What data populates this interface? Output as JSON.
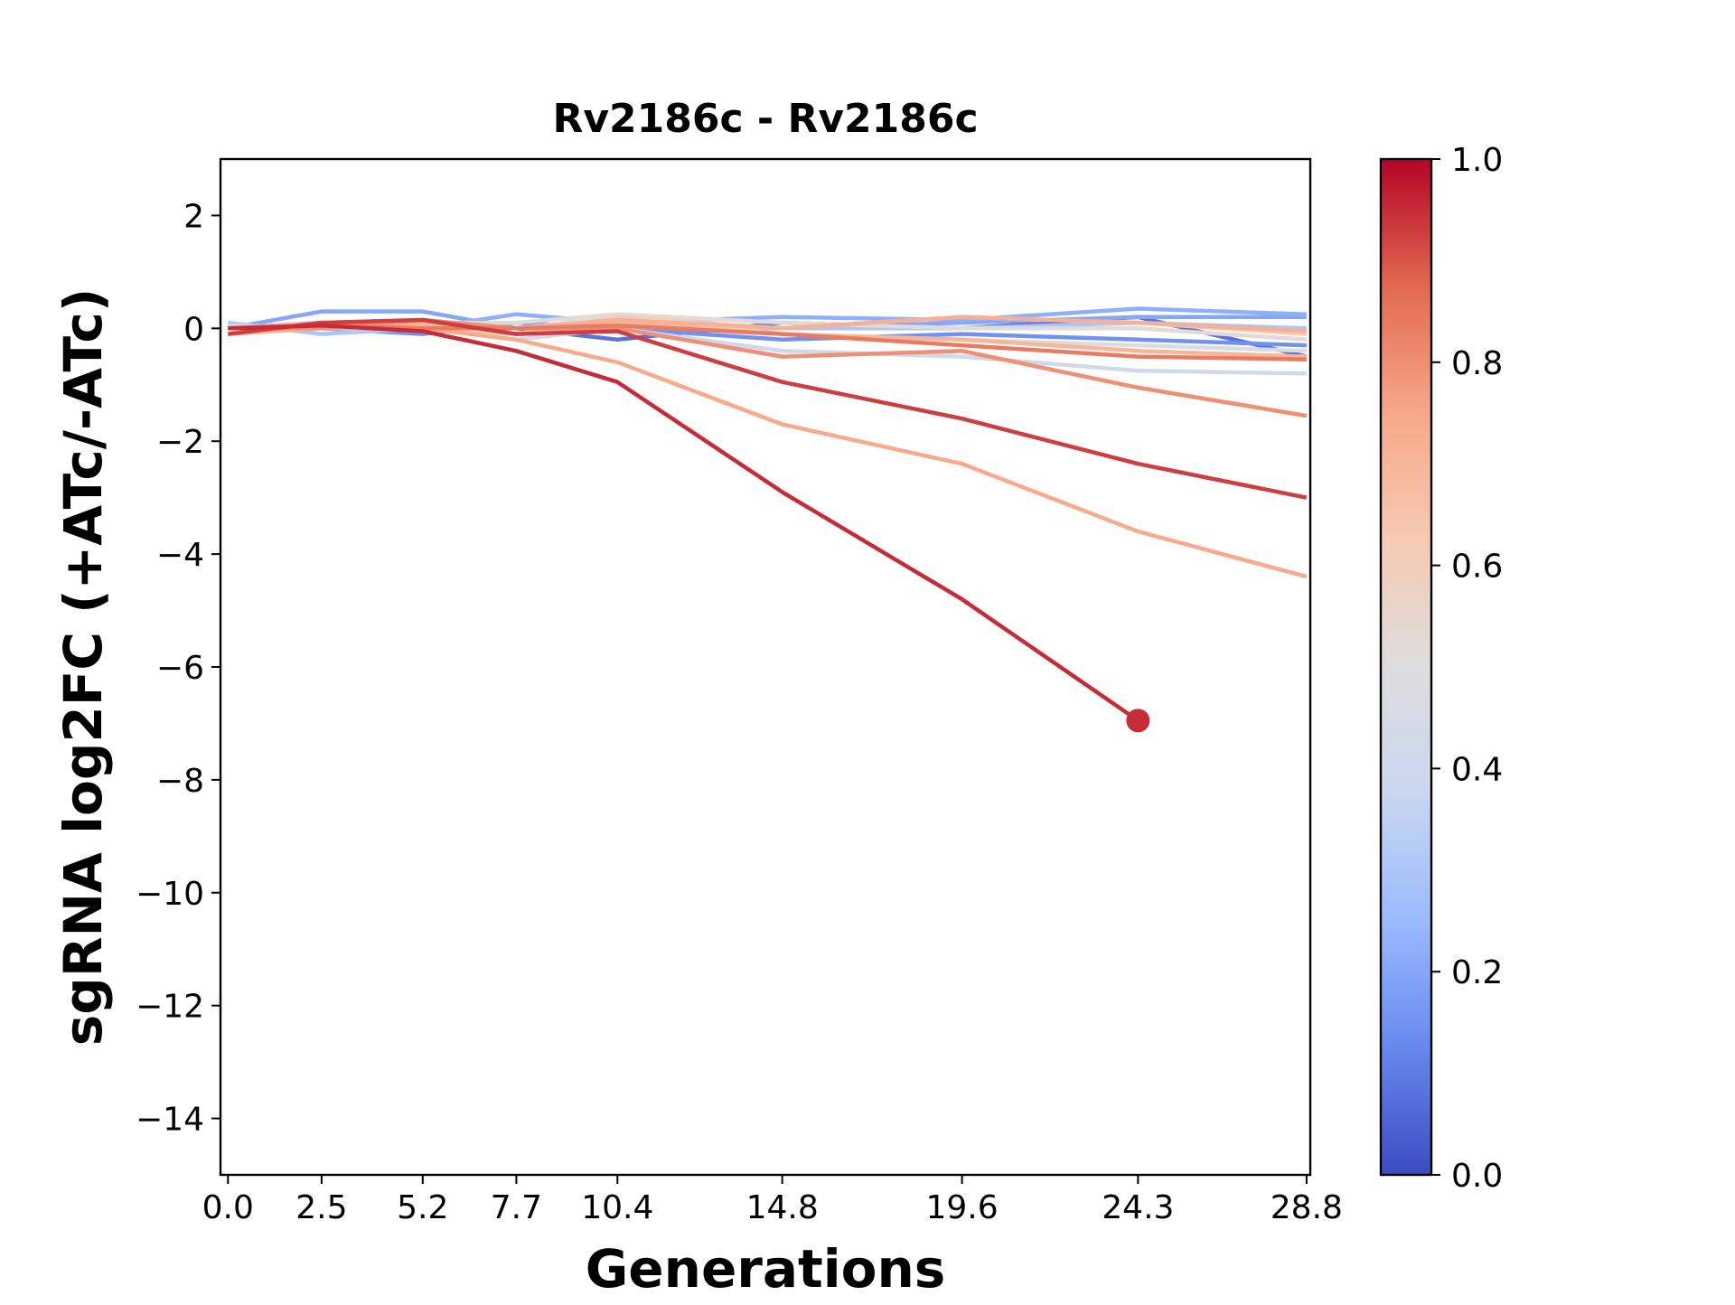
{
  "chart_data": {
    "type": "line",
    "title": "Rv2186c - Rv2186c",
    "xlabel": "Generations",
    "ylabel": "sgRNA log2FC (+ATc/-ATc)",
    "x": [
      0.0,
      2.5,
      5.2,
      7.7,
      10.4,
      14.8,
      19.6,
      24.3,
      28.8
    ],
    "x_tick_labels": [
      "0.0",
      "2.5",
      "5.2",
      "7.7",
      "10.4",
      "14.8",
      "19.6",
      "24.3",
      "28.8"
    ],
    "xlim": [
      -0.2,
      28.9
    ],
    "ylim": [
      -15,
      3
    ],
    "y_ticks": [
      2,
      0,
      -2,
      -4,
      -6,
      -8,
      -10,
      -12,
      -14
    ],
    "y_tick_labels": [
      "2",
      "0",
      "−2",
      "−4",
      "−6",
      "−8",
      "−10",
      "−12",
      "−14"
    ],
    "grid": false,
    "colorbar": {
      "colormap": "coolwarm",
      "range": [
        0.0,
        1.0
      ],
      "ticks": [
        0.0,
        0.2,
        0.4,
        0.6,
        0.8,
        1.0
      ],
      "tick_labels": [
        "0.0",
        "0.2",
        "0.4",
        "0.6",
        "0.8",
        "1.0"
      ],
      "stops": [
        "#3b4cc0",
        "#6788ee",
        "#9abbff",
        "#c9d7f0",
        "#dddddd",
        "#f6cab3",
        "#f7a889",
        "#e26952",
        "#b40426"
      ]
    },
    "series": [
      {
        "color_value": 0.08,
        "values": [
          0.0,
          0.1,
          0.05,
          0.0,
          -0.2,
          0.1,
          0.0,
          0.2,
          -0.5
        ]
      },
      {
        "color_value": 0.15,
        "values": [
          0.05,
          0.0,
          -0.1,
          0.1,
          0.0,
          -0.2,
          -0.1,
          -0.2,
          -0.3
        ]
      },
      {
        "color_value": 0.2,
        "values": [
          0.0,
          0.3,
          0.3,
          0.0,
          0.0,
          0.0,
          0.1,
          0.2,
          0.2
        ]
      },
      {
        "color_value": 0.22,
        "values": [
          0.0,
          0.0,
          0.0,
          0.25,
          0.1,
          0.2,
          0.15,
          0.35,
          0.25
        ]
      },
      {
        "color_value": 0.3,
        "values": [
          0.1,
          -0.1,
          0.0,
          -0.1,
          0.1,
          0.0,
          0.0,
          0.1,
          0.0
        ]
      },
      {
        "color_value": 0.42,
        "values": [
          0.05,
          0.0,
          0.0,
          -0.2,
          0.0,
          -0.4,
          -0.5,
          -0.75,
          -0.8
        ]
      },
      {
        "color_value": 0.48,
        "values": [
          0.0,
          0.05,
          0.0,
          0.0,
          0.2,
          -0.1,
          -0.2,
          -0.3,
          -0.4
        ]
      },
      {
        "color_value": 0.52,
        "values": [
          0.0,
          0.0,
          0.1,
          0.1,
          0.25,
          0.1,
          0.0,
          0.0,
          -0.2
        ]
      },
      {
        "color_value": 0.62,
        "values": [
          0.0,
          0.05,
          0.0,
          -0.1,
          0.2,
          0.0,
          0.2,
          0.1,
          -0.1
        ]
      },
      {
        "color_value": 0.7,
        "values": [
          0.0,
          0.0,
          0.05,
          0.0,
          0.1,
          -0.1,
          -0.2,
          -0.4,
          -0.5
        ]
      },
      {
        "color_value": 0.72,
        "values": [
          -0.1,
          0.0,
          0.1,
          0.0,
          0.15,
          0.0,
          0.2,
          0.1,
          -0.05
        ]
      },
      {
        "color_value": 0.74,
        "values": [
          0.0,
          0.1,
          0.0,
          -0.2,
          -0.6,
          -1.7,
          -2.4,
          -3.6,
          -4.4
        ]
      },
      {
        "color_value": 0.8,
        "values": [
          0.0,
          0.0,
          0.15,
          0.0,
          0.0,
          -0.5,
          -0.4,
          -1.05,
          -1.55
        ]
      },
      {
        "color_value": 0.84,
        "values": [
          0.0,
          0.05,
          0.0,
          0.0,
          0.05,
          -0.1,
          -0.3,
          -0.5,
          -0.55
        ]
      },
      {
        "color_value": 0.93,
        "values": [
          -0.1,
          0.1,
          0.15,
          -0.1,
          -0.05,
          -0.95,
          -1.6,
          -2.4,
          -3.0
        ]
      },
      {
        "color_value": 0.95,
        "values": [
          0.0,
          0.05,
          -0.05,
          -0.4,
          -0.95,
          -2.9,
          -4.8,
          -6.95,
          null
        ],
        "end_marker": true
      }
    ]
  }
}
